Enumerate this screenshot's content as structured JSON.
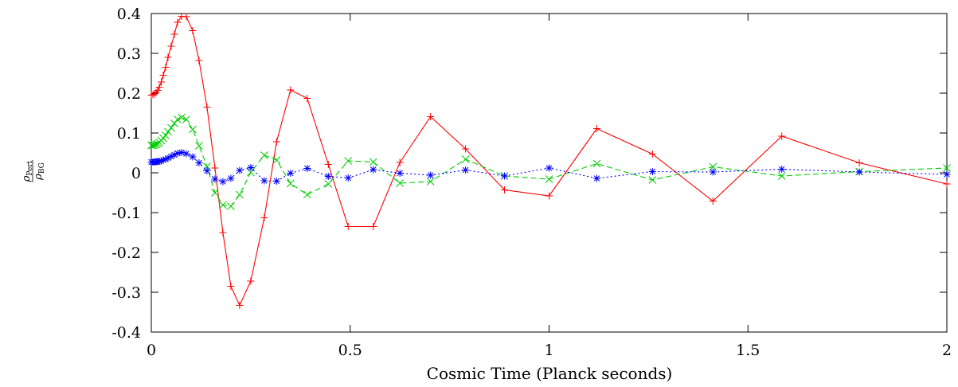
{
  "chart_data": {
    "type": "line",
    "xlabel": "Cosmic Time (Planck seconds)",
    "ylabel": {
      "numerator_symbol": "ρ",
      "numerator_sub": "Pert",
      "denominator_symbol": "ρ",
      "denominator_sub": "BG"
    },
    "xlim": [
      0,
      2
    ],
    "ylim": [
      -0.4,
      0.4
    ],
    "xticks": [
      {
        "value": 0,
        "label": "0"
      },
      {
        "value": 0.5,
        "label": "0.5"
      },
      {
        "value": 1,
        "label": "1"
      },
      {
        "value": 1.5,
        "label": "1.5"
      },
      {
        "value": 2,
        "label": "2"
      }
    ],
    "yticks": [
      {
        "value": -0.4,
        "label": "-0.4"
      },
      {
        "value": -0.3,
        "label": "-0.3"
      },
      {
        "value": -0.2,
        "label": "-0.2"
      },
      {
        "value": -0.1,
        "label": "-0.1"
      },
      {
        "value": 0,
        "label": "0"
      },
      {
        "value": 0.1,
        "label": "0.1"
      },
      {
        "value": 0.2,
        "label": "0.2"
      },
      {
        "value": 0.3,
        "label": "0.3"
      },
      {
        "value": 0.4,
        "label": "0.4"
      }
    ],
    "grid": false,
    "legend": "none",
    "series": [
      {
        "color": "#ff0000",
        "line_style": "solid",
        "marker": "plus",
        "points": [
          [
            0.0,
            0.195
          ],
          [
            0.004,
            0.196
          ],
          [
            0.008,
            0.198
          ],
          [
            0.012,
            0.202
          ],
          [
            0.016,
            0.207
          ],
          [
            0.02,
            0.215
          ],
          [
            0.025,
            0.228
          ],
          [
            0.03,
            0.245
          ],
          [
            0.036,
            0.265
          ],
          [
            0.042,
            0.29
          ],
          [
            0.05,
            0.318
          ],
          [
            0.058,
            0.348
          ],
          [
            0.066,
            0.378
          ],
          [
            0.076,
            0.393
          ],
          [
            0.088,
            0.392
          ],
          [
            0.104,
            0.357
          ],
          [
            0.12,
            0.282
          ],
          [
            0.14,
            0.165
          ],
          [
            0.16,
            0.012
          ],
          [
            0.18,
            -0.15
          ],
          [
            0.2,
            -0.285
          ],
          [
            0.222,
            -0.333
          ],
          [
            0.25,
            -0.272
          ],
          [
            0.284,
            -0.113
          ],
          [
            0.315,
            0.078
          ],
          [
            0.35,
            0.208
          ],
          [
            0.392,
            0.187
          ],
          [
            0.445,
            0.021
          ],
          [
            0.495,
            -0.135
          ],
          [
            0.558,
            -0.135
          ],
          [
            0.625,
            0.026
          ],
          [
            0.702,
            0.141
          ],
          [
            0.79,
            0.06
          ],
          [
            0.888,
            -0.043
          ],
          [
            1.0,
            -0.058
          ],
          [
            1.12,
            0.111
          ],
          [
            1.26,
            0.047
          ],
          [
            1.412,
            -0.071
          ],
          [
            1.585,
            0.092
          ],
          [
            1.78,
            0.025
          ],
          [
            2.0,
            -0.028
          ]
        ]
      },
      {
        "color": "#00cc00",
        "line_style": "dashed",
        "marker": "cross",
        "points": [
          [
            0.0,
            0.069
          ],
          [
            0.004,
            0.069
          ],
          [
            0.008,
            0.07
          ],
          [
            0.012,
            0.071
          ],
          [
            0.016,
            0.073
          ],
          [
            0.02,
            0.076
          ],
          [
            0.025,
            0.081
          ],
          [
            0.03,
            0.087
          ],
          [
            0.036,
            0.094
          ],
          [
            0.042,
            0.103
          ],
          [
            0.05,
            0.113
          ],
          [
            0.058,
            0.124
          ],
          [
            0.066,
            0.134
          ],
          [
            0.076,
            0.139
          ],
          [
            0.088,
            0.134
          ],
          [
            0.104,
            0.109
          ],
          [
            0.12,
            0.068
          ],
          [
            0.14,
            0.016
          ],
          [
            0.16,
            -0.05
          ],
          [
            0.18,
            -0.081
          ],
          [
            0.2,
            -0.084
          ],
          [
            0.222,
            -0.055
          ],
          [
            0.25,
            0.001
          ],
          [
            0.284,
            0.044
          ],
          [
            0.315,
            0.032
          ],
          [
            0.35,
            -0.027
          ],
          [
            0.392,
            -0.055
          ],
          [
            0.445,
            -0.028
          ],
          [
            0.495,
            0.03
          ],
          [
            0.558,
            0.027
          ],
          [
            0.625,
            -0.026
          ],
          [
            0.702,
            -0.022
          ],
          [
            0.79,
            0.034
          ],
          [
            0.888,
            -0.008
          ],
          [
            1.0,
            -0.016
          ],
          [
            1.12,
            0.023
          ],
          [
            1.26,
            -0.018
          ],
          [
            1.412,
            0.015
          ],
          [
            1.585,
            -0.008
          ],
          [
            1.78,
            0.003
          ],
          [
            2.0,
            0.012
          ]
        ]
      },
      {
        "color": "#0000ff",
        "line_style": "dotted",
        "marker": "star",
        "points": [
          [
            0.0,
            0.027
          ],
          [
            0.004,
            0.027
          ],
          [
            0.008,
            0.027
          ],
          [
            0.012,
            0.028
          ],
          [
            0.016,
            0.028
          ],
          [
            0.02,
            0.029
          ],
          [
            0.025,
            0.03
          ],
          [
            0.03,
            0.032
          ],
          [
            0.036,
            0.034
          ],
          [
            0.042,
            0.037
          ],
          [
            0.05,
            0.041
          ],
          [
            0.058,
            0.045
          ],
          [
            0.066,
            0.049
          ],
          [
            0.076,
            0.051
          ],
          [
            0.088,
            0.048
          ],
          [
            0.104,
            0.04
          ],
          [
            0.12,
            0.025
          ],
          [
            0.14,
            0.005
          ],
          [
            0.16,
            -0.016
          ],
          [
            0.18,
            -0.022
          ],
          [
            0.2,
            -0.014
          ],
          [
            0.222,
            0.006
          ],
          [
            0.25,
            0.013
          ],
          [
            0.284,
            -0.02
          ],
          [
            0.315,
            -0.021
          ],
          [
            0.35,
            -0.001
          ],
          [
            0.392,
            0.011
          ],
          [
            0.445,
            -0.009
          ],
          [
            0.495,
            -0.013
          ],
          [
            0.558,
            0.008
          ],
          [
            0.625,
            -0.001
          ],
          [
            0.702,
            -0.006
          ],
          [
            0.79,
            0.007
          ],
          [
            0.888,
            -0.008
          ],
          [
            1.0,
            0.012
          ],
          [
            1.12,
            -0.014
          ],
          [
            1.26,
            0.003
          ],
          [
            1.412,
            0.002
          ],
          [
            1.585,
            0.009
          ],
          [
            1.78,
            0.002
          ],
          [
            2.0,
            -0.004
          ]
        ]
      }
    ]
  }
}
